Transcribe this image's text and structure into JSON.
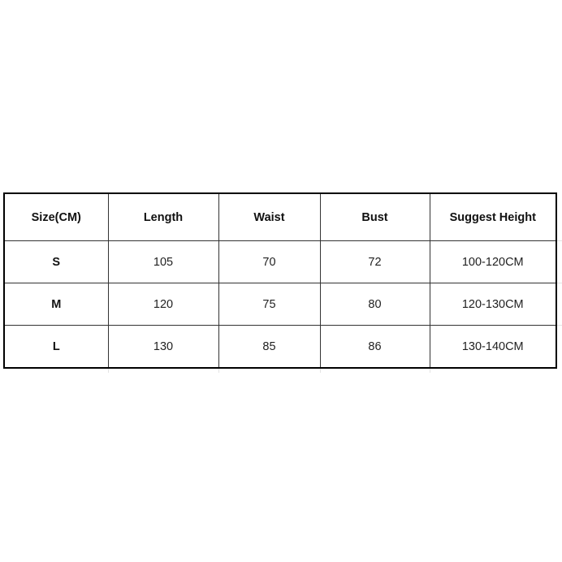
{
  "table": {
    "headers": [
      "Size(CM)",
      "Length",
      "Waist",
      "Bust",
      "Suggest Height"
    ],
    "rows": [
      [
        "S",
        "105",
        "70",
        "72",
        "100-120CM"
      ],
      [
        "M",
        "120",
        "75",
        "80",
        "120-130CM"
      ],
      [
        "L",
        "130",
        "85",
        "86",
        "130-140CM"
      ]
    ]
  }
}
